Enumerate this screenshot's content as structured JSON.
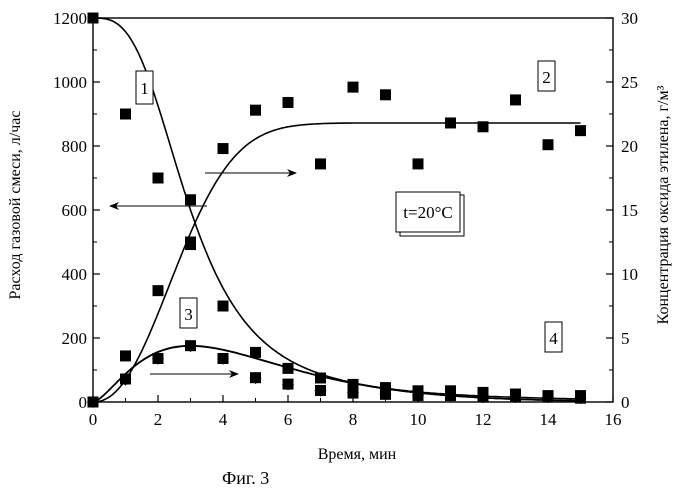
{
  "figure_caption": "Фиг. 3",
  "condition_label": "t=20°C",
  "chart_data": {
    "type": "scatter",
    "xlabel": "Время, мин",
    "ylabel_left": "Расход газовой смеси, л/час",
    "ylabel_right": "Концентрация оксида этилена, г/м³",
    "xlim": [
      0,
      16
    ],
    "ylim_left": [
      0,
      1200
    ],
    "ylim_right": [
      0,
      30
    ],
    "x_ticks": [
      0,
      2,
      4,
      6,
      8,
      10,
      12,
      14,
      16
    ],
    "y_ticks_left": [
      0,
      200,
      400,
      600,
      800,
      1000,
      1200
    ],
    "y_ticks_right": [
      0,
      5,
      10,
      15,
      20,
      25,
      30
    ],
    "grid": false,
    "series": [
      {
        "name": "1",
        "axis": "left",
        "marker": "square",
        "x": [
          0,
          1,
          2,
          3,
          4,
          5,
          6,
          7,
          8,
          9,
          10,
          11,
          12,
          13,
          14,
          15
        ],
        "y": [
          1200,
          900,
          700,
          500,
          300,
          155,
          105,
          75,
          55,
          45,
          35,
          35,
          30,
          25,
          20,
          20
        ],
        "fit": true
      },
      {
        "name": "2",
        "axis": "right",
        "marker": "square",
        "x": [
          0,
          1,
          2,
          3,
          3,
          4,
          5,
          6,
          7,
          8,
          9,
          10,
          11,
          12,
          13,
          14,
          15
        ],
        "y": [
          0,
          3.6,
          8.7,
          12.3,
          15.8,
          19.8,
          22.8,
          23.4,
          18.6,
          24.6,
          24.0,
          18.6,
          21.8,
          21.5,
          23.6,
          20.1,
          21.2
        ],
        "fit": true
      },
      {
        "name": "3",
        "axis": "left",
        "marker": "diamond",
        "x": [
          0,
          1,
          2,
          3,
          4,
          5,
          6,
          7,
          8,
          9,
          10,
          11,
          12,
          13,
          14,
          15
        ],
        "y": [
          0,
          70,
          135,
          175,
          135,
          75,
          55,
          35,
          30,
          25,
          20,
          20,
          15,
          15,
          15,
          12
        ],
        "fit": true
      },
      {
        "name": "4",
        "axis": "right",
        "marker": "square",
        "x": [
          0,
          1,
          2,
          3,
          4,
          5,
          6,
          7,
          8,
          9,
          10,
          11,
          12,
          13,
          14,
          15
        ],
        "y": [
          0,
          1.8,
          3.4,
          4.4,
          3.4,
          1.9,
          1.4,
          0.9,
          0.7,
          0.6,
          0.5,
          0.5,
          0.4,
          0.4,
          0.4,
          0.3
        ],
        "fit": true
      }
    ]
  }
}
